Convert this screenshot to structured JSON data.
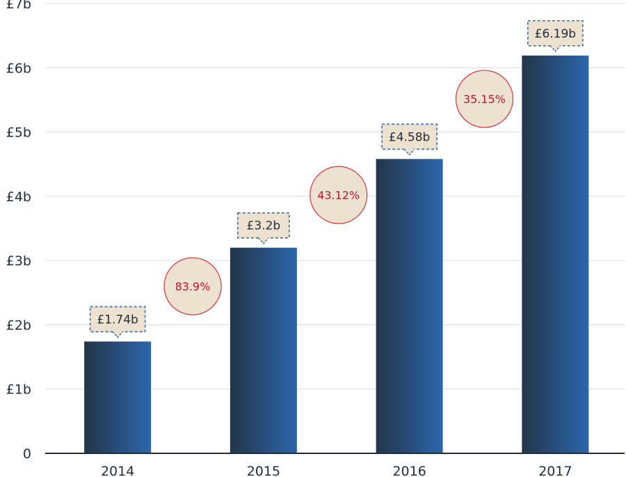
{
  "chart_data": {
    "type": "bar",
    "categories": [
      "2014",
      "2015",
      "2016",
      "2017"
    ],
    "values": [
      1.74,
      3.2,
      4.58,
      6.19
    ],
    "value_labels": [
      "£1.74b",
      "£3.2b",
      "£4.58b",
      "£6.19b"
    ],
    "growth_labels": [
      "83.9%",
      "43.12%",
      "35.15%"
    ],
    "y_ticks": [
      {
        "value": 0,
        "label": "0"
      },
      {
        "value": 1,
        "label": "£1b"
      },
      {
        "value": 2,
        "label": "£2b"
      },
      {
        "value": 3,
        "label": "£3b"
      },
      {
        "value": 4,
        "label": "£4b"
      },
      {
        "value": 5,
        "label": "£5b"
      },
      {
        "value": 6,
        "label": "£6b"
      },
      {
        "value": 7,
        "label": "£7b"
      }
    ],
    "ylim": [
      0,
      7
    ],
    "grid": true,
    "colors": {
      "bar_dark": "#233548",
      "bar_light": "#2b66ad",
      "callout_fill": "#ede2d0",
      "callout_border": "#3a6aa8",
      "growth_fill": "#ede2d0",
      "growth_border": "#d9303a",
      "growth_text": "#c8102e",
      "grid": "#dcdcdc",
      "axis": "#222e3a"
    }
  }
}
